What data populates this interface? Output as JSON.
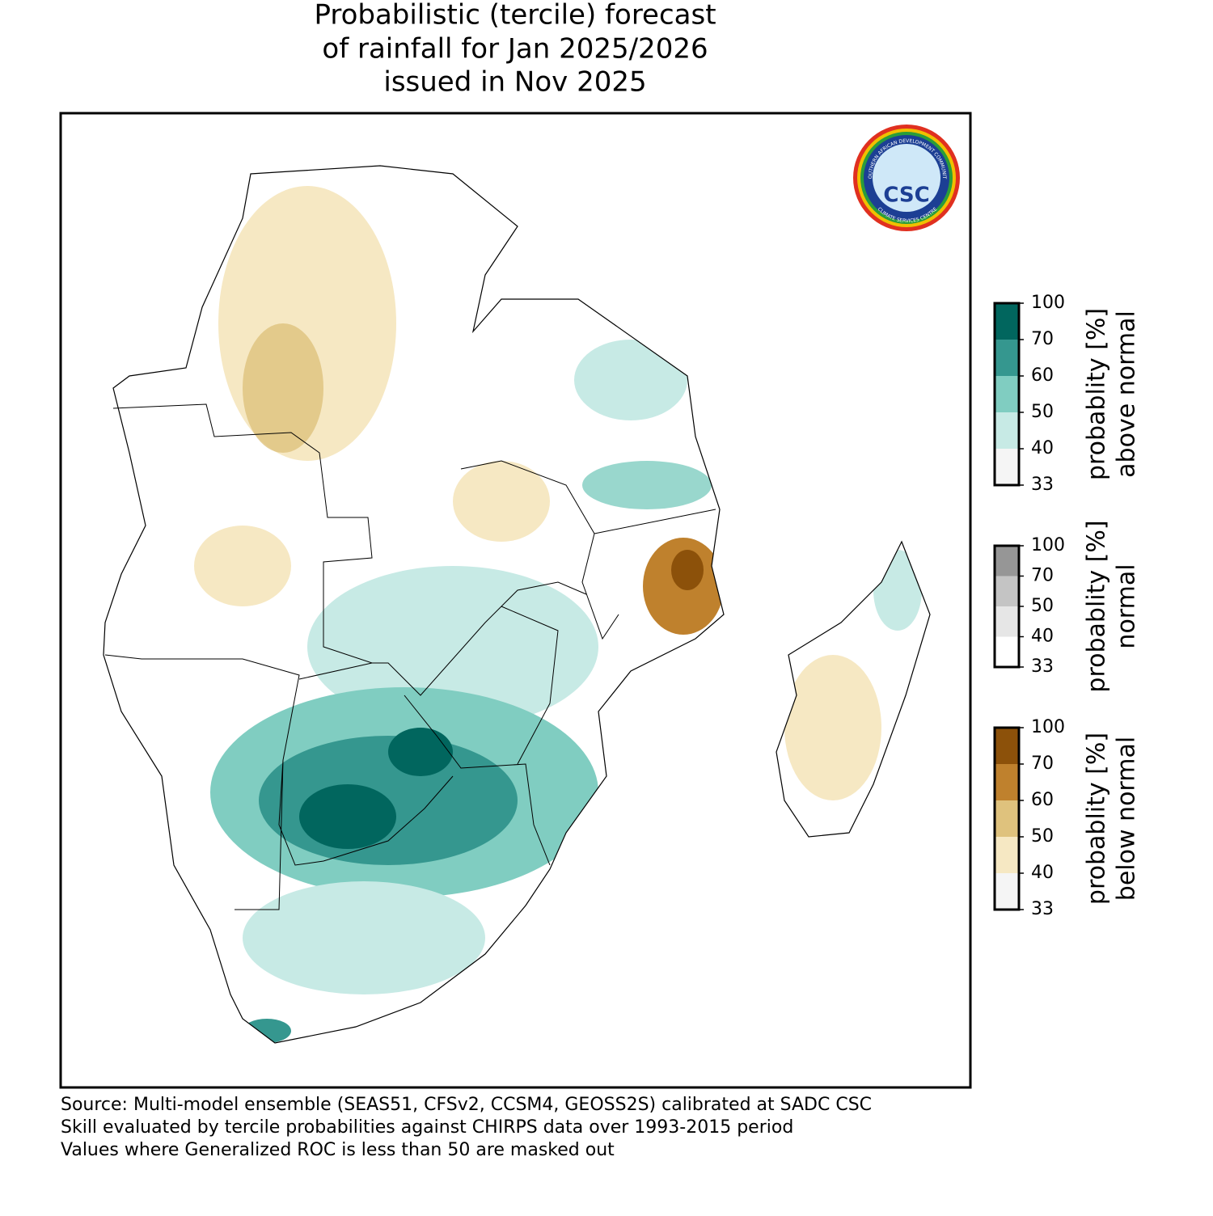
{
  "header": {
    "title": [
      "Probabilistic (tercile) forecast",
      "of rainfall for Jan 2025/2026",
      "issued in Nov 2025"
    ]
  },
  "logo": {
    "top_text": "SOUTHERN AFRICAN DEVELOPMENT COMMUNITY",
    "bottom_text": "CLIMATE SERVICES CENTRE",
    "center": "CSC"
  },
  "colorbars": [
    {
      "label": [
        "probablity [%]",
        "above normal"
      ],
      "ticks": [
        33,
        40,
        50,
        60,
        70,
        100
      ],
      "colors": [
        "#f5f5f5",
        "#c7eae5",
        "#80cdc1",
        "#35978f",
        "#01665e"
      ]
    },
    {
      "label": [
        "probablity [%]",
        "normal"
      ],
      "ticks": [
        33,
        40,
        50,
        70,
        100
      ],
      "colors": [
        "#ffffff",
        "#e6e6e6",
        "#c4c4c4",
        "#969696"
      ]
    },
    {
      "label": [
        "probablity [%]",
        "below normal"
      ],
      "ticks": [
        33,
        40,
        50,
        60,
        70,
        100
      ],
      "colors": [
        "#f5f5f5",
        "#f6e8c3",
        "#dfc27d",
        "#bf812d",
        "#8c510a"
      ]
    }
  ],
  "footer": {
    "lines": [
      "Source: Multi-model ensemble (SEAS51, CFSv2, CCSM4, GEOSS2S) calibrated at SADC CSC",
      "Skill evaluated by tercile probabilities against CHIRPS data over 1993-2015 period",
      "Values where Generalized ROC is less than 50 are masked out"
    ]
  }
}
